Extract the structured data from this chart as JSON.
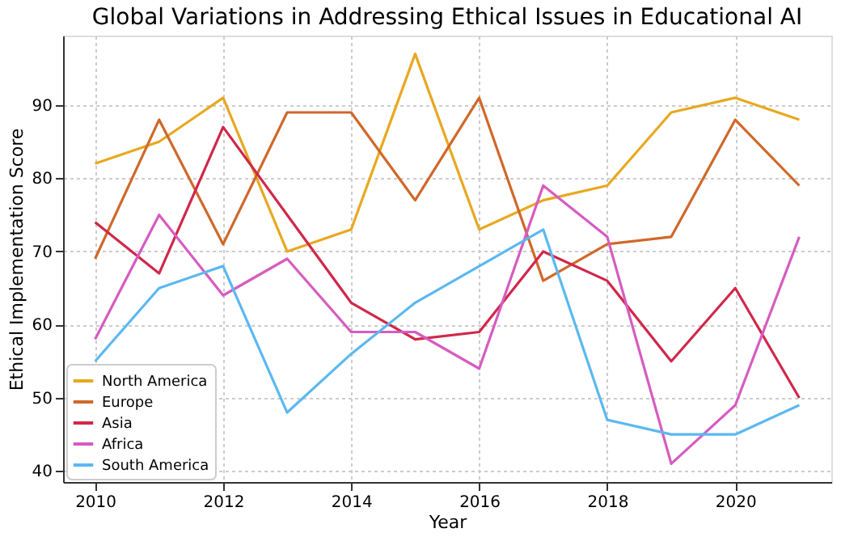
{
  "chart_data": {
    "type": "line",
    "title": "Global Variations in Addressing Ethical Issues in Educational AI",
    "xlabel": "Year",
    "ylabel": "Ethical Implementation Score",
    "x": [
      2010,
      2011,
      2012,
      2013,
      2014,
      2015,
      2016,
      2017,
      2018,
      2019,
      2020,
      2021
    ],
    "series": [
      {
        "name": "North America",
        "color": "#e8a820",
        "values": [
          82,
          85,
          91,
          70,
          73,
          97,
          73,
          77,
          79,
          89,
          91,
          88
        ]
      },
      {
        "name": "Europe",
        "color": "#d0682a",
        "values": [
          69,
          88,
          71,
          89,
          89,
          77,
          91,
          66,
          71,
          72,
          88,
          79
        ]
      },
      {
        "name": "Asia",
        "color": "#d0284a",
        "values": [
          74,
          67,
          87,
          75,
          63,
          58,
          59,
          70,
          66,
          55,
          65,
          50
        ]
      },
      {
        "name": "Africa",
        "color": "#d65cc0",
        "values": [
          58,
          75,
          64,
          69,
          59,
          59,
          54,
          79,
          72,
          41,
          49,
          72
        ]
      },
      {
        "name": "South America",
        "color": "#5bb8f0",
        "values": [
          55,
          65,
          68,
          48,
          56,
          63,
          68,
          73,
          47,
          45,
          45,
          49
        ]
      }
    ],
    "xlim": [
      2009.5,
      2021.5
    ],
    "xticks": [
      2010,
      2012,
      2014,
      2016,
      2018,
      2020
    ],
    "ylim": [
      38.5,
      99.5
    ],
    "yticks": [
      40,
      50,
      60,
      70,
      80,
      90
    ],
    "grid": true,
    "legend": "bottom left",
    "line_style": "solid",
    "marker": "none"
  }
}
